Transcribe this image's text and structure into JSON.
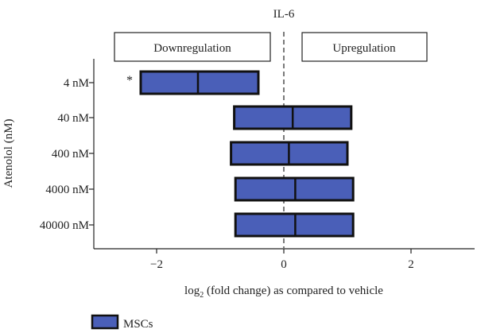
{
  "chart_data": {
    "type": "bar",
    "title": "IL-6",
    "xlabel_main": "log",
    "xlabel_sub": "2",
    "xlabel_rest": " (fold change) as compared to vehicle",
    "ylabel": "Atenolol (nM)",
    "xlim": [
      -3,
      3
    ],
    "x_ticks": [
      -2,
      0,
      2
    ],
    "x_tick_labels": [
      "−2",
      "0",
      "2"
    ],
    "region_labels": {
      "left": "Downregulation",
      "right": "Upregulation"
    },
    "reference_line": 0,
    "categories": [
      "4 nM",
      "40 nM",
      "400 nM",
      "4000 nM",
      "40000 nM"
    ],
    "series": [
      {
        "name": "MSCs",
        "color": "#4a5fb8",
        "min": [
          -2.25,
          -0.78,
          -0.83,
          -0.76,
          -0.76
        ],
        "median": [
          -1.35,
          0.14,
          0.08,
          0.18,
          0.18
        ],
        "max": [
          -0.4,
          1.06,
          1.0,
          1.09,
          1.09
        ],
        "significance": [
          "*",
          "",
          "",
          "",
          ""
        ]
      }
    ],
    "legend_position": "bottom-left"
  }
}
